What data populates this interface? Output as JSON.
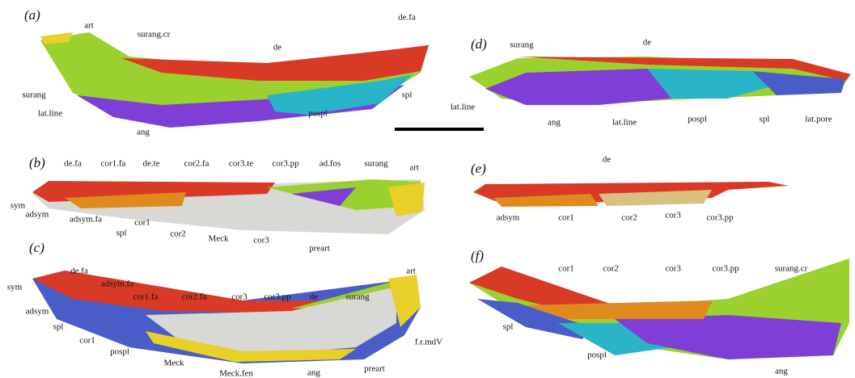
{
  "panels": [
    {
      "label": "(a)",
      "annotations": [
        "art",
        "surang.cr",
        "de.fa",
        "de",
        "surang",
        "lat.line",
        "spl",
        "pospl",
        "ang"
      ]
    },
    {
      "label": "(b)",
      "annotations": [
        "de.fa",
        "cor1.fa",
        "de.te",
        "cor2.fa",
        "cor3.te",
        "cor3.pp",
        "ad.fos",
        "surang",
        "art",
        "sym",
        "adsym",
        "adsym.fa",
        "spl",
        "cor1",
        "cor2",
        "Meck",
        "cor3",
        "preart"
      ]
    },
    {
      "label": "(c)",
      "annotations": [
        "de.fa",
        "adsym.fa",
        "cor1.fa",
        "cor2.fa",
        "cor3",
        "cor3.pp",
        "de",
        "surang",
        "art",
        "sym",
        "adsym",
        "spl",
        "cor1",
        "pospl",
        "Meck",
        "Meck.fen",
        "ang",
        "preart",
        "f.r.mdV"
      ]
    },
    {
      "label": "(d)",
      "annotations": [
        "surang",
        "de",
        "lat.line",
        "ang",
        "lat.line",
        "pospl",
        "spl",
        "lat.pore"
      ]
    },
    {
      "label": "(e)",
      "annotations": [
        "de",
        "adsym",
        "cor1",
        "cor2",
        "cor3",
        "cor3.pp"
      ]
    },
    {
      "label": "(f)",
      "annotations": [
        "cor1",
        "cor2",
        "cor3",
        "cor3.pp",
        "surang.cr",
        "spl",
        "pospl",
        "ang"
      ]
    }
  ]
}
